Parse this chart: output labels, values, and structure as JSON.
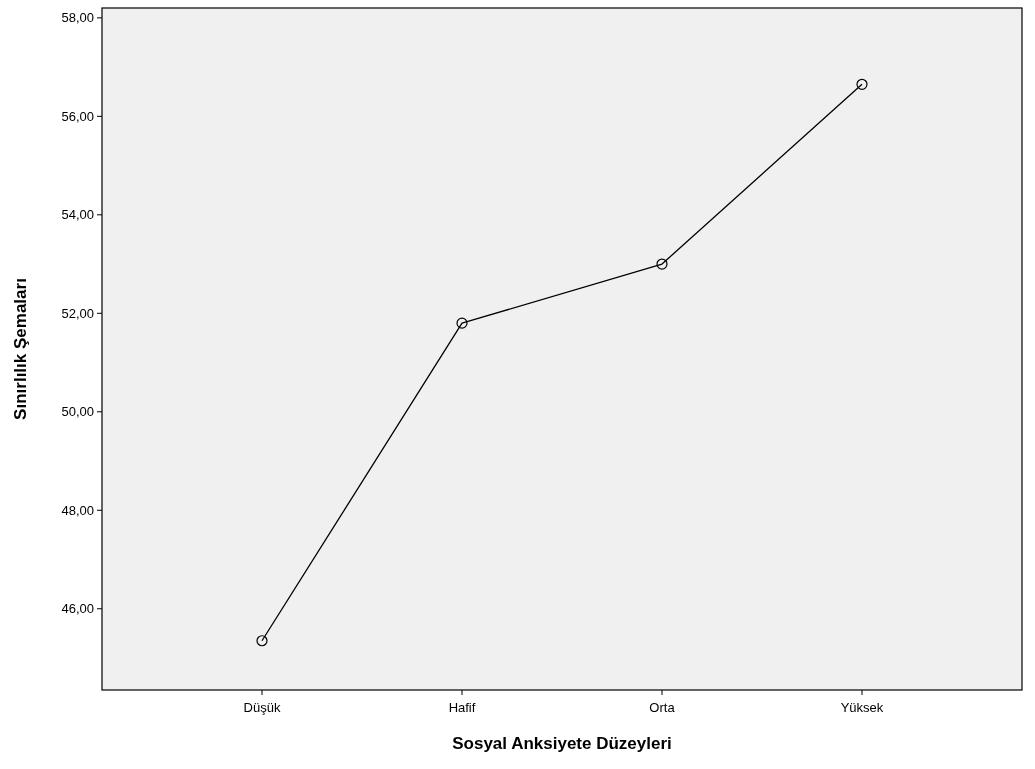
{
  "chart_data": {
    "type": "line",
    "xlabel": "Sosyal Anksiyete Düzeyleri",
    "ylabel": "Sınırlılık Şemaları",
    "categories": [
      "Düşük",
      "Hafif",
      "Orta",
      "Yüksek"
    ],
    "series": [
      {
        "color": "#000000",
        "values": [
          45.35,
          51.8,
          53.0,
          56.65
        ]
      }
    ],
    "ylim": [
      44.35,
      58.2
    ],
    "yticks": [
      {
        "value": 46,
        "label": "46,00"
      },
      {
        "value": 48,
        "label": "48,00"
      },
      {
        "value": 50,
        "label": "50,00"
      },
      {
        "value": 52,
        "label": "52,00"
      },
      {
        "value": 54,
        "label": "54,00"
      },
      {
        "value": 56,
        "label": "56,00"
      },
      {
        "value": 58,
        "label": "58,00"
      }
    ],
    "marker": "circle",
    "line_style": "solid",
    "grid": false
  }
}
